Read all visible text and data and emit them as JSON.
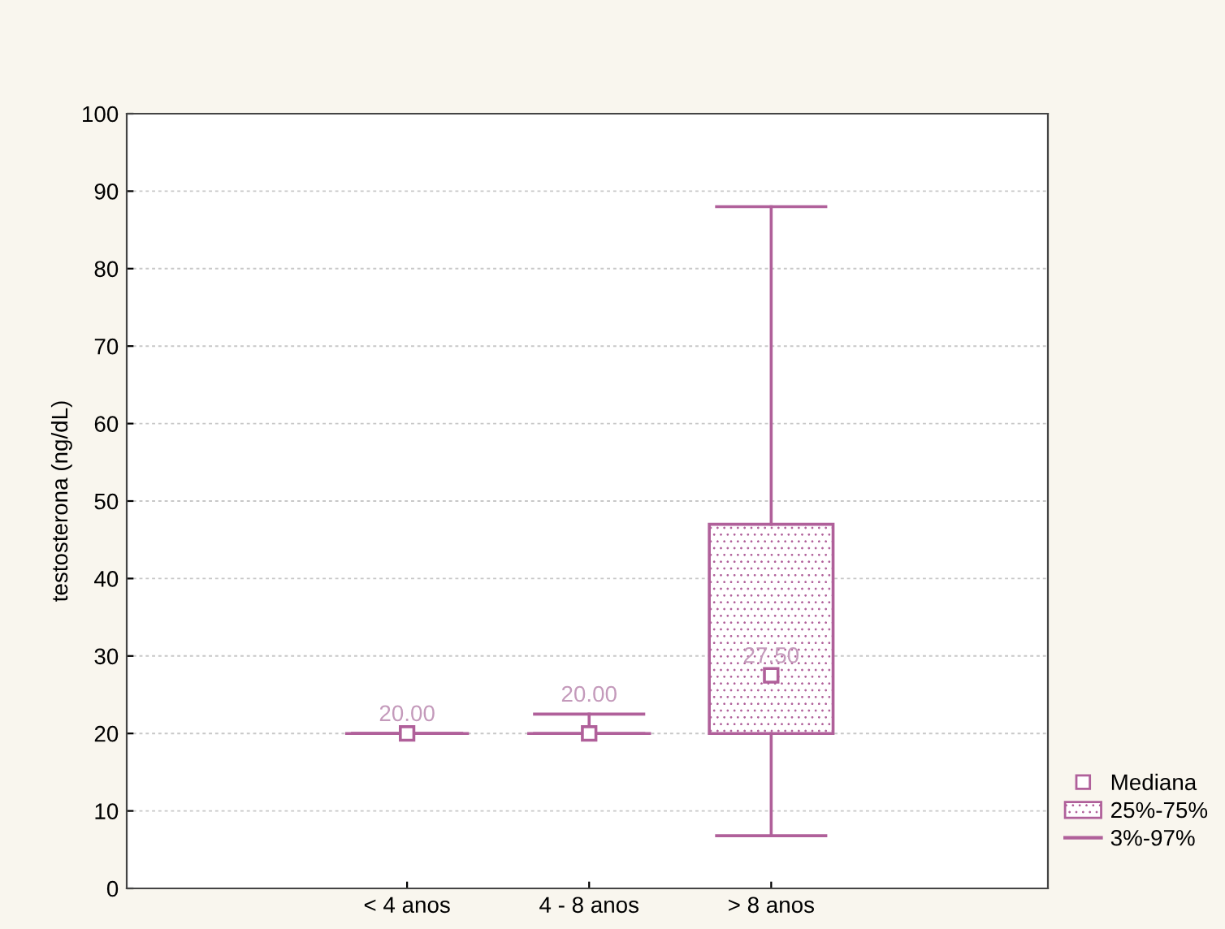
{
  "chart_data": {
    "type": "box",
    "ylabel": "testosterona (ng/dL)",
    "categories": [
      "< 4 anos",
      "4 - 8 anos",
      "> 8 anos"
    ],
    "boxes": [
      {
        "low": 20,
        "q1": 20,
        "median": 20,
        "q3": 20,
        "high": 20
      },
      {
        "low": 20,
        "q1": 20,
        "median": 20,
        "q3": 20,
        "high": 22.5
      },
      {
        "low": 6.8,
        "q1": 20,
        "median": 27.5,
        "q3": 47,
        "high": 88
      }
    ],
    "value_labels": [
      "20.00",
      "20.00",
      "27.50"
    ],
    "color": "#b0609a",
    "marker": "square",
    "ylim": [
      0,
      100
    ],
    "yticks": [
      0,
      10,
      20,
      30,
      40,
      50,
      60,
      70,
      80,
      90,
      100
    ],
    "grid": "y",
    "annotations": [
      "Mediana",
      "25%-75%",
      "3%-97%"
    ]
  }
}
